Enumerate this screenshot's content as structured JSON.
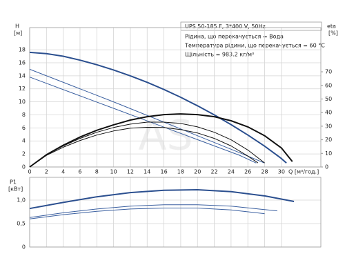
{
  "chart_data": [
    {
      "type": "line",
      "info": {
        "title": "UPS 50-185 F, 3*400 V, 50Hz",
        "lines": [
          "Рідина, що перекачується = Вода",
          "Температура рідини, що перекачується = 60 °C",
          "Щільність = 983.2 кг/м³"
        ]
      },
      "ylabel": "H",
      "yunit": "[м]",
      "y2label": "eta",
      "y2unit": "[%]",
      "xlabel": "Q [м³/год.]",
      "watermark": "AS",
      "xlim": [
        0,
        34.7
      ],
      "xticks": [
        0,
        2,
        4,
        6,
        8,
        10,
        12,
        14,
        16,
        18,
        20,
        22,
        24,
        26,
        28,
        30
      ],
      "ylim": [
        0,
        21.4
      ],
      "yticks": [
        0,
        2,
        4,
        6,
        8,
        10,
        12,
        14,
        16,
        18
      ],
      "y2lim": [
        0,
        102.5
      ],
      "y2ticks": [
        0,
        10,
        20,
        30,
        40,
        50,
        60,
        70
      ],
      "grid": true,
      "series": [
        {
          "color": "#2b4f8f",
          "line_width": 2,
          "x": [
            0,
            2,
            4,
            6,
            8,
            10,
            12,
            14,
            16,
            18,
            20,
            22,
            24,
            26,
            28,
            30,
            30.6
          ],
          "values": [
            17.6,
            17.4,
            17.0,
            16.4,
            15.7,
            14.9,
            14.0,
            13.0,
            11.9,
            10.7,
            9.4,
            8.0,
            6.5,
            4.9,
            3.2,
            1.3,
            0.6
          ]
        },
        {
          "color": "#3a5fa0",
          "line_width": 1,
          "x": [
            0,
            5,
            10,
            15,
            20,
            25,
            28
          ],
          "values": [
            15.0,
            12.5,
            10.0,
            7.4,
            4.8,
            2.2,
            0.6
          ]
        },
        {
          "color": "#3a5fa0",
          "line_width": 1,
          "x": [
            0,
            5,
            10,
            15,
            20,
            25,
            27
          ],
          "values": [
            13.8,
            11.4,
            9.0,
            6.6,
            4.2,
            1.8,
            0.6
          ]
        },
        {
          "color": "#111111",
          "line_width": 2,
          "axis": "y2",
          "x": [
            0,
            2,
            4,
            6,
            8,
            10,
            12,
            14,
            16,
            18,
            20,
            22,
            24,
            26,
            28,
            30,
            31.3
          ],
          "values": [
            0,
            9,
            16,
            22,
            27,
            31,
            34.5,
            37,
            38.5,
            39,
            38.5,
            37,
            34,
            29.5,
            23,
            14,
            4
          ]
        },
        {
          "color": "#111111",
          "line_width": 1,
          "axis": "y2",
          "x": [
            0,
            2,
            4,
            6,
            8,
            10,
            12,
            14,
            16,
            18,
            20,
            22,
            24,
            26,
            28
          ],
          "values": [
            0,
            9,
            15.5,
            21,
            25.5,
            29,
            31.5,
            33,
            33,
            32,
            29.5,
            25.5,
            20,
            12.5,
            3
          ]
        },
        {
          "color": "#111111",
          "line_width": 1,
          "axis": "y2",
          "x": [
            0,
            2,
            4,
            6,
            8,
            10,
            12,
            14,
            16,
            18,
            20,
            22,
            24,
            26,
            27.2
          ],
          "values": [
            0,
            8.5,
            14.5,
            19.5,
            23.5,
            26.5,
            28.5,
            29.2,
            29,
            27.5,
            25,
            21,
            15.5,
            8,
            3
          ]
        }
      ]
    },
    {
      "type": "line",
      "ylabel": "P1",
      "yunit": "[кВт]",
      "xlim": [
        0,
        34.7
      ],
      "ylim": [
        0,
        1.485
      ],
      "yticks": [
        0,
        {
          "value": 0.5,
          "label": "0,5"
        },
        {
          "value": 1.0,
          "label": "1,0"
        }
      ],
      "grid": true,
      "series": [
        {
          "color": "#2b4f8f",
          "line_width": 2,
          "x": [
            0,
            4,
            8,
            12,
            16,
            20,
            24,
            28,
            31.5
          ],
          "values": [
            0.82,
            0.95,
            1.07,
            1.16,
            1.21,
            1.22,
            1.18,
            1.09,
            0.97
          ]
        },
        {
          "color": "#3a5fa0",
          "line_width": 1,
          "x": [
            0,
            4,
            8,
            12,
            16,
            20,
            24,
            29.5
          ],
          "values": [
            0.63,
            0.73,
            0.81,
            0.87,
            0.9,
            0.9,
            0.87,
            0.77
          ]
        },
        {
          "color": "#3a5fa0",
          "line_width": 1,
          "x": [
            0,
            4,
            8,
            12,
            16,
            20,
            24,
            28
          ],
          "values": [
            0.6,
            0.69,
            0.76,
            0.81,
            0.83,
            0.83,
            0.79,
            0.71
          ]
        }
      ]
    }
  ]
}
